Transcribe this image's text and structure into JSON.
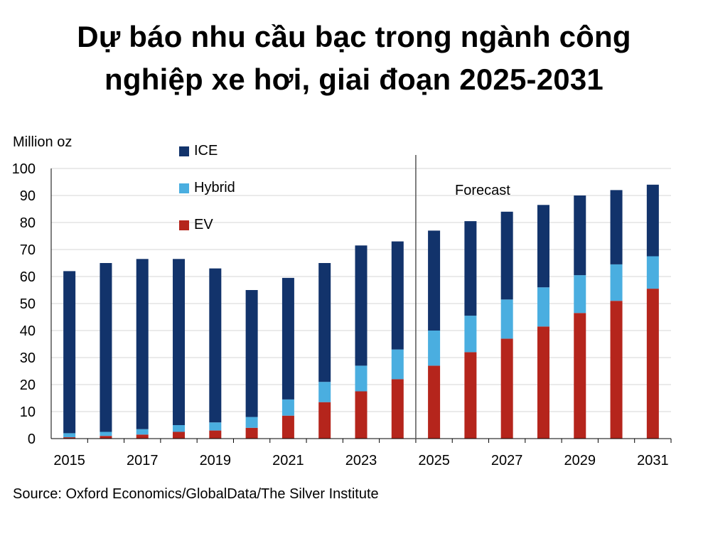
{
  "title_lines": [
    "Dự báo nhu cầu bạc trong ngành công",
    "nghiệp xe hơi, giai đoạn 2025-2031"
  ],
  "source": "Source: Oxford Economics/GlobalData/The Silver Institute",
  "chart_data": {
    "type": "bar",
    "stacked": true,
    "title": "Dự báo nhu cầu bạc trong ngành công nghiệp xe hơi, giai đoạn 2025-2031",
    "ylabel": "Million oz",
    "xlabel": "",
    "ylim": [
      0,
      100
    ],
    "yticks": [
      0,
      10,
      20,
      30,
      40,
      50,
      60,
      70,
      80,
      90,
      100
    ],
    "grid": true,
    "legend_position": "top-left",
    "categories": [
      "2015",
      "2016",
      "2017",
      "2018",
      "2019",
      "2020",
      "2021",
      "2022",
      "2023",
      "2024",
      "2025",
      "2026",
      "2027",
      "2028",
      "2029",
      "2030",
      "2031"
    ],
    "xtick_labels": [
      "2015",
      "2017",
      "2019",
      "2021",
      "2023",
      "2025",
      "2027",
      "2029",
      "2031"
    ],
    "annotation": "Forecast",
    "forecast_start": "2025",
    "series": [
      {
        "name": "EV",
        "color": "#b5251c",
        "values": [
          0.5,
          1,
          1.5,
          2.5,
          3,
          4,
          8.5,
          13.5,
          17.5,
          22,
          27,
          32,
          37,
          41.5,
          46.5,
          51,
          55.5
        ]
      },
      {
        "name": "Hybrid",
        "color": "#4aaee0",
        "values": [
          1.5,
          1.5,
          2,
          2.5,
          3,
          4,
          6,
          7.5,
          9.5,
          11,
          13,
          13.5,
          14.5,
          14.5,
          14,
          13.5,
          12
        ]
      },
      {
        "name": "ICE",
        "color": "#12336b",
        "values": [
          60,
          62.5,
          63,
          61.5,
          57,
          47,
          45,
          44,
          44.5,
          40,
          37,
          35,
          32.5,
          30.5,
          29.5,
          27.5,
          26.5
        ]
      }
    ],
    "legend_order": [
      "ICE",
      "Hybrid",
      "EV"
    ]
  }
}
